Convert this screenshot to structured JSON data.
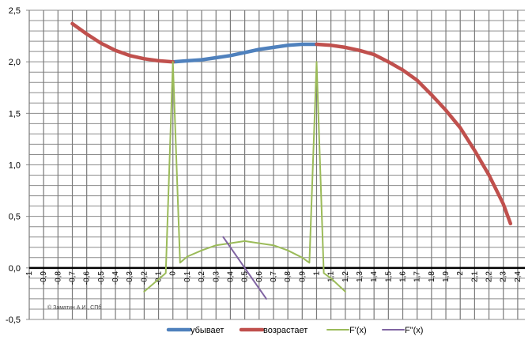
{
  "chart_data": {
    "type": "line",
    "title": "",
    "xlabel": "",
    "ylabel": "",
    "xlim": [
      -1,
      2.45
    ],
    "ylim": [
      -0.5,
      2.5
    ],
    "grid": true,
    "legend_placement": "bottom",
    "x_tick_labels": [
      "-1",
      "-0,9",
      "-0,8",
      "-0,7",
      "-0,6",
      "-0,5",
      "-0,4",
      "-0,3",
      "-0,2",
      "-0,1",
      "0",
      "0,1",
      "0,2",
      "0,3",
      "0,4",
      "0,5",
      "0,6",
      "0,7",
      "0,8",
      "0,9",
      "1",
      "1,1",
      "1,2",
      "1,3",
      "1,4",
      "1,5",
      "1,6",
      "1,7",
      "1,8",
      "1,9",
      "2",
      "2,1",
      "2,2",
      "2,3",
      "2,4"
    ],
    "y_tick_labels": [
      "2,5",
      "2,0",
      "1,5",
      "1,0",
      "0,5",
      "0,0",
      "-0,5"
    ],
    "y_tick_values": [
      2.5,
      2.0,
      1.5,
      1.0,
      0.5,
      0.0,
      -0.5
    ],
    "series": [
      {
        "name": "убывает",
        "color": "#4f81bd",
        "x": [
          0,
          0.1,
          0.2,
          0.3,
          0.4,
          0.5,
          0.6,
          0.7,
          0.8,
          0.9,
          1.0
        ],
        "y": [
          2.0,
          2.01,
          2.02,
          2.04,
          2.06,
          2.09,
          2.12,
          2.14,
          2.16,
          2.17,
          2.17
        ]
      },
      {
        "name": "возрастает",
        "color": "#c0504d",
        "segments": [
          {
            "x": [
              -0.7,
              -0.6,
              -0.5,
              -0.4,
              -0.3,
              -0.2,
              -0.1,
              0
            ],
            "y": [
              2.37,
              2.27,
              2.18,
              2.11,
              2.06,
              2.03,
              2.01,
              2.0
            ]
          },
          {
            "x": [
              1.0,
              1.1,
              1.2,
              1.3,
              1.4,
              1.5,
              1.6,
              1.7,
              1.8,
              1.9,
              2.0,
              2.1,
              2.2,
              2.3,
              2.35
            ],
            "y": [
              2.17,
              2.16,
              2.14,
              2.11,
              2.07,
              2.0,
              1.92,
              1.82,
              1.68,
              1.53,
              1.36,
              1.14,
              0.9,
              0.62,
              0.43
            ]
          }
        ]
      },
      {
        "name": "F'(x)",
        "color": "#9bbb59",
        "x": [
          -0.2,
          -0.05,
          0,
          0.05,
          0.1,
          0.2,
          0.3,
          0.4,
          0.5,
          0.6,
          0.7,
          0.8,
          0.9,
          0.95,
          1.0,
          1.05,
          1.1,
          1.2
        ],
        "y": [
          -0.23,
          -0.05,
          2.0,
          0.05,
          0.11,
          0.17,
          0.22,
          0.24,
          0.26,
          0.24,
          0.22,
          0.17,
          0.1,
          0.05,
          2.0,
          -0.05,
          -0.1,
          -0.23
        ]
      },
      {
        "name": "F\"(x)",
        "color": "#8064a2",
        "x": [
          0.35,
          0.65
        ],
        "y": [
          0.3,
          -0.3
        ]
      }
    ]
  },
  "watermark": "© Заматин А.И., СПб"
}
